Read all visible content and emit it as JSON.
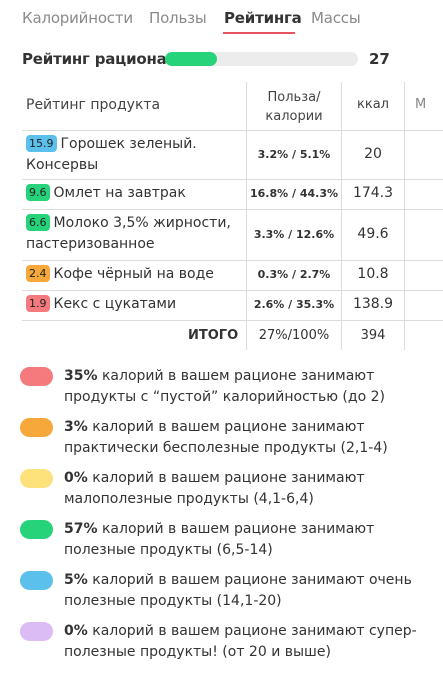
{
  "tabs": [
    {
      "label": "Калорийности",
      "active": false
    },
    {
      "label": "Пользы",
      "active": false
    },
    {
      "label": "Рейтинга",
      "active": true
    },
    {
      "label": "Массы",
      "active": false
    }
  ],
  "rating": {
    "label": "Рейтинг рациона",
    "value": "27",
    "fill_fraction": 0.27,
    "fill_color": "#27d37a"
  },
  "table": {
    "headers": {
      "product": "Рейтинг продукта",
      "benefit_line1": "Польза/",
      "benefit_line2": "калории",
      "kcal": "ккал",
      "extra": "М"
    },
    "rows": [
      {
        "score": "15.9",
        "score_color": "#5bc0eb",
        "name": "Горошек зеленый. Консервы",
        "benefit": "3.2% / 5.1%",
        "kcal": "20"
      },
      {
        "score": "9.6",
        "score_color": "#27d37a",
        "name": "Омлет на завтрак",
        "benefit": "16.8% / 44.3%",
        "kcal": "174.3"
      },
      {
        "score": "6.6",
        "score_color": "#27d37a",
        "name": "Молоко 3,5% жирности, пастеризованное",
        "benefit": "3.3% / 12.6%",
        "kcal": "49.6"
      },
      {
        "score": "2.4",
        "score_color": "#f6a83b",
        "name": "Кофе чёрный на воде",
        "benefit": "0.3% / 2.7%",
        "kcal": "10.8"
      },
      {
        "score": "1.9",
        "score_color": "#f47a7e",
        "name": "Кекс с цукатами",
        "benefit": "2.6% / 35.3%",
        "kcal": "138.9"
      }
    ],
    "total": {
      "label": "ИТОГО",
      "benefit": "27%/100%",
      "kcal": "394"
    }
  },
  "legend": [
    {
      "color": "#f47a7e",
      "pct": "35%",
      "text": " калорий в вашем рационе занимают продукты с “пустой” калорийностью (до 2)"
    },
    {
      "color": "#f6a83b",
      "pct": "3%",
      "text": " калорий в вашем рационе занимают практически бесполезные продукты (2,1-4)"
    },
    {
      "color": "#fde27b",
      "pct": "0%",
      "text": " калорий в вашем рационе занимают малополезные продукты (4,1-6,4)"
    },
    {
      "color": "#27d37a",
      "pct": "57%",
      "text": " калорий в вашем рационе занимают полезные продукты (6,5-14)"
    },
    {
      "color": "#5bc0eb",
      "pct": "5%",
      "text": " калорий в вашем рационе занимают очень полезные продукты (14,1-20)"
    },
    {
      "color": "#dbbcf5",
      "pct": "0%",
      "text": " калорий в вашем рационе занимают супер-полезные продукты! (от 20 и выше)"
    }
  ]
}
